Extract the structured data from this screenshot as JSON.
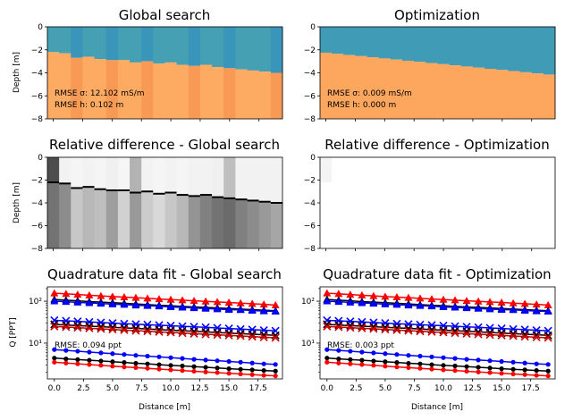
{
  "chart_data": [
    {
      "panel": "top-left",
      "type": "heatmap",
      "title": "Global search",
      "ylabel": "Depth [m]",
      "xlabel": "",
      "xlim": [
        -0.5,
        19.5
      ],
      "ylim": [
        -8,
        0
      ],
      "yticks": [
        0,
        -2,
        -4,
        -6,
        -8
      ],
      "xticks": [
        0,
        2.5,
        5,
        7.5,
        10,
        12.5,
        15,
        17.5
      ],
      "layer_top_color": "#3f9bb6",
      "layer_bottom_color": "#fca65e",
      "interface_depth": [
        -2.2,
        -2.3,
        -2.7,
        -2.6,
        -2.8,
        -2.9,
        -2.9,
        -3.1,
        -3.0,
        -3.2,
        -3.1,
        -3.3,
        -3.4,
        -3.3,
        -3.5,
        -3.6,
        -3.7,
        -3.8,
        -3.9,
        -4.0
      ],
      "annotations": [
        "RMSE σ: 12.102 mS/m",
        "RMSE h: 0.102 m"
      ]
    },
    {
      "panel": "top-right",
      "type": "heatmap",
      "title": "Optimization",
      "xlim": [
        -0.5,
        19.5
      ],
      "ylim": [
        -8,
        0
      ],
      "yticks": [
        0,
        -2,
        -4,
        -6,
        -8
      ],
      "xticks": [
        0,
        2.5,
        5,
        7.5,
        10,
        12.5,
        15,
        17.5
      ],
      "layer_top_color": "#3f9bb6",
      "layer_bottom_color": "#fca65e",
      "interface_depth": [
        -2.25,
        -2.35,
        -2.45,
        -2.55,
        -2.65,
        -2.75,
        -2.85,
        -2.95,
        -3.05,
        -3.15,
        -3.25,
        -3.35,
        -3.45,
        -3.55,
        -3.65,
        -3.75,
        -3.85,
        -3.95,
        -4.05,
        -4.15
      ],
      "annotations": [
        "RMSE σ: 0.009 mS/m",
        "RMSE h: 0.000 m"
      ]
    },
    {
      "panel": "middle-left",
      "type": "heatmap",
      "title": "Relative difference - Global search",
      "ylabel": "Depth [m]",
      "xlim": [
        -0.5,
        19.5
      ],
      "ylim": [
        -8,
        0
      ],
      "yticks": [
        0,
        -2,
        -4,
        -6,
        -8
      ],
      "xticks": [
        0,
        2.5,
        5,
        7.5,
        10,
        12.5,
        15,
        17.5
      ],
      "column_gray_lower": [
        0.45,
        0.55,
        0.78,
        0.72,
        0.75,
        0.62,
        0.82,
        0.6,
        0.8,
        0.85,
        0.78,
        0.72,
        0.58,
        0.5,
        0.45,
        0.42,
        0.5,
        0.55,
        0.6,
        0.65
      ],
      "column_gray_upper": [
        0.3,
        0.95,
        0.96,
        0.95,
        0.96,
        0.94,
        0.96,
        0.7,
        0.95,
        0.96,
        0.95,
        0.96,
        0.95,
        0.95,
        0.94,
        0.75,
        0.95,
        0.95,
        0.95,
        0.95
      ]
    },
    {
      "panel": "middle-right",
      "type": "heatmap",
      "title": "Relative difference - Optimization",
      "xlim": [
        -0.5,
        19.5
      ],
      "ylim": [
        -8,
        0
      ],
      "yticks": [
        0,
        -2,
        -4,
        -6,
        -8
      ],
      "xticks": [
        0,
        2.5,
        5,
        7.5,
        10,
        12.5,
        15,
        17.5
      ]
    },
    {
      "panel": "bottom-left",
      "type": "scatter",
      "title": "Quadrature data fit - Global search",
      "ylabel": "Q [PPT]",
      "xlabel": "Distance [m]",
      "yscale": "log",
      "ylim": [
        1.4,
        220
      ],
      "xlim": [
        -0.6,
        19.6
      ],
      "xticks": [
        "0.0",
        "2.5",
        "5.0",
        "7.5",
        "10.0",
        "12.5",
        "15.0",
        "17.5"
      ],
      "ytick_labels": [
        "10¹",
        "10²"
      ],
      "x": [
        0,
        1,
        2,
        3,
        4,
        5,
        6,
        7,
        8,
        9,
        10,
        11,
        12,
        13,
        14,
        15,
        16,
        17,
        18,
        19
      ],
      "series": [
        {
          "color": "#ff0000",
          "marker": "triangle",
          "values": [
            155,
            150,
            144,
            139,
            134,
            129,
            125,
            121,
            117,
            113,
            109,
            106,
            102,
            99,
            96,
            93,
            90,
            87,
            84,
            81
          ]
        },
        {
          "color": "#000000",
          "marker": "triangle",
          "values": [
            110,
            106,
            102,
            98,
            95,
            92,
            89,
            86,
            83,
            80,
            78,
            75,
            73,
            71,
            69,
            67,
            65,
            63,
            61,
            59
          ]
        },
        {
          "color": "#0000ff",
          "marker": "triangle",
          "values": [
            100,
            97,
            94,
            91,
            88,
            85,
            83,
            80,
            78,
            76,
            73,
            71,
            69,
            67,
            65,
            63,
            62,
            60,
            58,
            57
          ]
        },
        {
          "color": "#0000ff",
          "marker": "x",
          "values": [
            35,
            34,
            33,
            32,
            31,
            30,
            29,
            28.3,
            27.5,
            26.8,
            26,
            25.2,
            24.5,
            23.8,
            23,
            22.3,
            21.6,
            21,
            20.3,
            19.7
          ]
        },
        {
          "color": "#000000",
          "marker": "x",
          "values": [
            28,
            27,
            26.2,
            25.4,
            24.6,
            23.8,
            23.1,
            22.4,
            21.7,
            21,
            20.3,
            19.7,
            19.1,
            18.5,
            17.9,
            17.3,
            16.8,
            16.3,
            15.8,
            15.3
          ]
        },
        {
          "color": "#cc0000",
          "marker": "x",
          "values": [
            25,
            24.2,
            23.4,
            22.6,
            21.9,
            21.2,
            20.5,
            19.8,
            19.2,
            18.6,
            18,
            17.4,
            16.8,
            16.3,
            15.8,
            15.3,
            14.8,
            14.3,
            13.8,
            13.4
          ]
        },
        {
          "color": "#0000ff",
          "marker": "dot",
          "values": [
            7.0,
            6.7,
            6.4,
            6.1,
            5.85,
            5.6,
            5.35,
            5.1,
            4.9,
            4.7,
            4.5,
            4.3,
            4.1,
            3.95,
            3.8,
            3.65,
            3.5,
            3.35,
            3.2,
            3.1
          ]
        },
        {
          "color": "#000000",
          "marker": "dot",
          "values": [
            4.4,
            4.2,
            4.05,
            3.9,
            3.75,
            3.6,
            3.45,
            3.3,
            3.2,
            3.05,
            2.95,
            2.85,
            2.75,
            2.65,
            2.55,
            2.45,
            2.37,
            2.3,
            2.22,
            2.15
          ]
        },
        {
          "color": "#ff0000",
          "marker": "dot",
          "values": [
            3.5,
            3.35,
            3.2,
            3.08,
            2.95,
            2.82,
            2.7,
            2.6,
            2.5,
            2.4,
            2.3,
            2.22,
            2.13,
            2.05,
            1.98,
            1.9,
            1.83,
            1.77,
            1.7,
            1.65
          ]
        }
      ],
      "annotations": [
        "RMSE: 0.094 ppt"
      ]
    },
    {
      "panel": "bottom-right",
      "type": "scatter",
      "title": "Quadrature data fit - Optimization",
      "xlabel": "Distance [m]",
      "yscale": "log",
      "ylim": [
        1.4,
        220
      ],
      "xlim": [
        -0.6,
        19.6
      ],
      "xticks": [
        "0.0",
        "2.5",
        "5.0",
        "7.5",
        "10.0",
        "12.5",
        "15.0",
        "17.5"
      ],
      "ytick_labels": [
        "10¹",
        "10²"
      ],
      "x": [
        0,
        1,
        2,
        3,
        4,
        5,
        6,
        7,
        8,
        9,
        10,
        11,
        12,
        13,
        14,
        15,
        16,
        17,
        18,
        19
      ],
      "series": [
        {
          "color": "#ff0000",
          "marker": "triangle",
          "values": [
            155,
            150,
            144,
            139,
            134,
            129,
            125,
            121,
            117,
            113,
            109,
            106,
            102,
            99,
            96,
            93,
            90,
            87,
            84,
            81
          ]
        },
        {
          "color": "#000000",
          "marker": "triangle",
          "values": [
            110,
            106,
            102,
            98,
            95,
            92,
            89,
            86,
            83,
            80,
            78,
            75,
            73,
            71,
            69,
            67,
            65,
            63,
            61,
            59
          ]
        },
        {
          "color": "#0000ff",
          "marker": "triangle",
          "values": [
            100,
            97,
            94,
            91,
            88,
            85,
            83,
            80,
            78,
            76,
            73,
            71,
            69,
            67,
            65,
            63,
            62,
            60,
            58,
            57
          ]
        },
        {
          "color": "#0000ff",
          "marker": "x",
          "values": [
            35,
            34,
            33,
            32,
            31,
            30,
            29,
            28.3,
            27.5,
            26.8,
            26,
            25.2,
            24.5,
            23.8,
            23,
            22.3,
            21.6,
            21,
            20.3,
            19.7
          ]
        },
        {
          "color": "#000000",
          "marker": "x",
          "values": [
            28,
            27,
            26.2,
            25.4,
            24.6,
            23.8,
            23.1,
            22.4,
            21.7,
            21,
            20.3,
            19.7,
            19.1,
            18.5,
            17.9,
            17.3,
            16.8,
            16.3,
            15.8,
            15.3
          ]
        },
        {
          "color": "#cc0000",
          "marker": "x",
          "values": [
            25,
            24.2,
            23.4,
            22.6,
            21.9,
            21.2,
            20.5,
            19.8,
            19.2,
            18.6,
            18,
            17.4,
            16.8,
            16.3,
            15.8,
            15.3,
            14.8,
            14.3,
            13.8,
            13.4
          ]
        },
        {
          "color": "#0000ff",
          "marker": "dot",
          "values": [
            7.0,
            6.7,
            6.4,
            6.1,
            5.85,
            5.6,
            5.35,
            5.1,
            4.9,
            4.7,
            4.5,
            4.3,
            4.1,
            3.95,
            3.8,
            3.65,
            3.5,
            3.35,
            3.2,
            3.1
          ]
        },
        {
          "color": "#000000",
          "marker": "dot",
          "values": [
            4.4,
            4.2,
            4.05,
            3.9,
            3.75,
            3.6,
            3.45,
            3.3,
            3.2,
            3.05,
            2.95,
            2.85,
            2.75,
            2.65,
            2.55,
            2.45,
            2.37,
            2.3,
            2.22,
            2.15
          ]
        },
        {
          "color": "#ff0000",
          "marker": "dot",
          "values": [
            3.5,
            3.35,
            3.2,
            3.08,
            2.95,
            2.82,
            2.7,
            2.6,
            2.5,
            2.4,
            2.3,
            2.22,
            2.13,
            2.05,
            1.98,
            1.9,
            1.83,
            1.77,
            1.7,
            1.65
          ]
        }
      ],
      "annotations": [
        "RMSE: 0.003 ppt"
      ]
    }
  ]
}
